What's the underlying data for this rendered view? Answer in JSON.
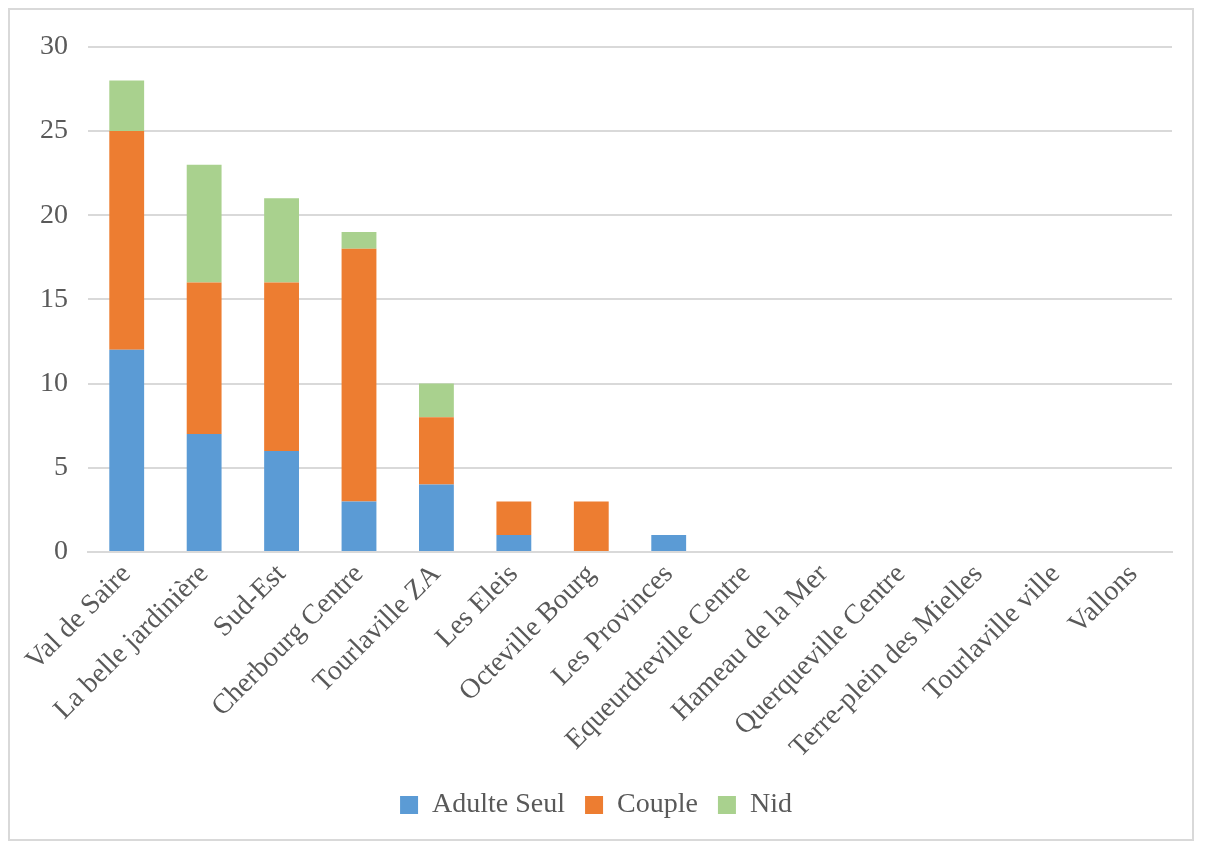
{
  "chart_data": {
    "type": "bar",
    "stacked": true,
    "categories": [
      "Val de Saire",
      "La belle jardinière",
      "Sud-Est",
      "Cherbourg Centre",
      "Tourlaville ZA",
      "Les Eleis",
      "Octeville Bourg",
      "Les Provinces",
      "Equeurdreville Centre",
      "Hameau de la Mer",
      "Querqueville Centre",
      "Terre-plein des Mielles",
      "Tourlaville ville",
      "Vallons"
    ],
    "series": [
      {
        "name": "Adulte Seul",
        "color": "#5b9bd5",
        "values": [
          12,
          7,
          6,
          3,
          4,
          1,
          0,
          1,
          0,
          0,
          0,
          0,
          0,
          0
        ]
      },
      {
        "name": "Couple",
        "color": "#ed7d31",
        "values": [
          13,
          9,
          10,
          15,
          4,
          2,
          3,
          0,
          0,
          0,
          0,
          0,
          0,
          0
        ]
      },
      {
        "name": "Nid",
        "color": "#a9d18e",
        "values": [
          3,
          7,
          5,
          1,
          2,
          0,
          0,
          0,
          0,
          0,
          0,
          0,
          0,
          0
        ]
      }
    ],
    "ylim": [
      0,
      30
    ],
    "yticks": [
      0,
      5,
      10,
      15,
      20,
      25,
      30
    ],
    "grid": "y",
    "legend": "bottom"
  }
}
